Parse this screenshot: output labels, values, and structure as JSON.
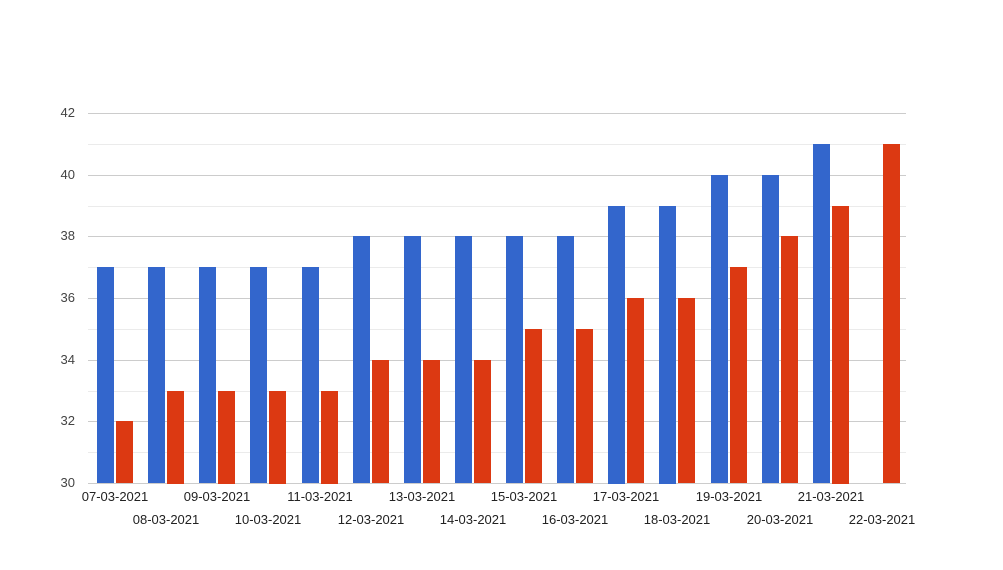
{
  "chart_data": {
    "type": "bar",
    "title": "",
    "xlabel": "",
    "ylabel": "",
    "categories": [
      "07-03-2021",
      "08-03-2021",
      "09-03-2021",
      "10-03-2021",
      "11-03-2021",
      "12-03-2021",
      "13-03-2021",
      "14-03-2021",
      "15-03-2021",
      "16-03-2021",
      "17-03-2021",
      "18-03-2021",
      "19-03-2021",
      "20-03-2021",
      "21-03-2021",
      "22-03-2021"
    ],
    "series": [
      {
        "name": "blue-series",
        "color": "#3366CC",
        "values": [
          37,
          37,
          37,
          37,
          37,
          38,
          38,
          38,
          38,
          38,
          39,
          39,
          40,
          40,
          41,
          null
        ]
      },
      {
        "name": "red-series",
        "color": "#DC3912",
        "values": [
          32,
          33,
          33,
          33,
          33,
          34,
          34,
          34,
          35,
          35,
          36,
          36,
          37,
          38,
          39,
          41
        ]
      }
    ],
    "ylim": [
      30,
      42
    ],
    "y_tick_step": 2,
    "y_minor_step": 1,
    "y_tick_labels": [
      "30",
      "32",
      "34",
      "36",
      "38",
      "40",
      "42"
    ],
    "x_label_rows": 2,
    "grid": true,
    "legend_position": "none",
    "colors": {
      "background": "#ffffff",
      "major_gridline": "#cccccc",
      "minor_gridline": "#ebebeb",
      "y_label_text": "#444444",
      "x_label_text": "#222222"
    }
  }
}
